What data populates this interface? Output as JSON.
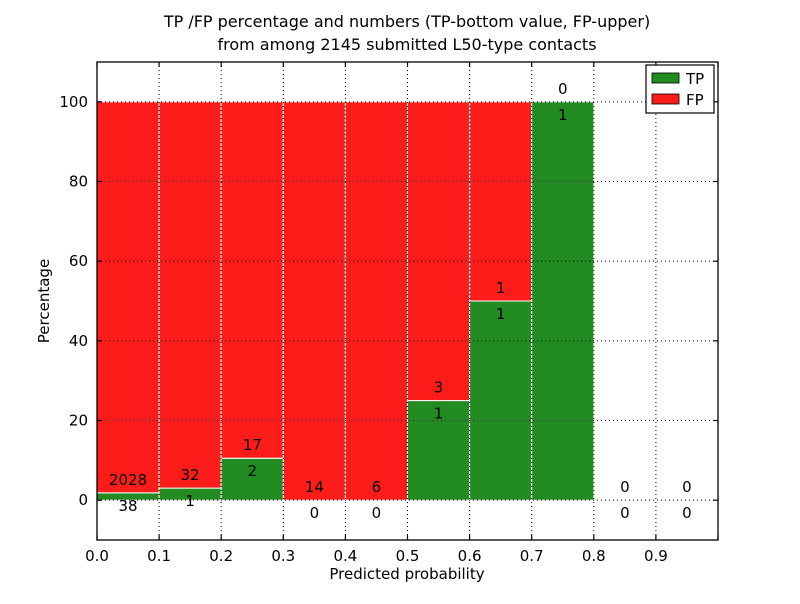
{
  "chart_data": {
    "type": "bar",
    "stacked": true,
    "title_line1": "TP /FP percentage and numbers (TP-bottom value, FP-upper)",
    "title_line2": "from among 2145 submitted L50-type contacts",
    "xlabel": "Predicted probability",
    "ylabel": "Percentage",
    "bin_edges": [
      0.0,
      0.1,
      0.2,
      0.3,
      0.4,
      0.5,
      0.6,
      0.7,
      0.8,
      0.9,
      1.0
    ],
    "series": [
      {
        "name": "TP",
        "color": "#228b22",
        "counts": [
          38,
          1,
          2,
          0,
          0,
          1,
          1,
          1,
          0,
          0
        ],
        "percentages": [
          1.84,
          3.03,
          10.53,
          0,
          0,
          25,
          50,
          100,
          0,
          0
        ]
      },
      {
        "name": "FP",
        "color": "#fc1d1a",
        "counts": [
          2028,
          32,
          17,
          14,
          6,
          3,
          1,
          0,
          0,
          0
        ],
        "percentages": [
          98.16,
          96.97,
          89.47,
          100,
          100,
          75,
          50,
          0,
          0,
          0
        ]
      }
    ],
    "xtick_labels": [
      "0.0",
      "0.1",
      "0.2",
      "0.3",
      "0.4",
      "0.5",
      "0.6",
      "0.7",
      "0.8",
      "0.9"
    ],
    "ytick_values": [
      0,
      20,
      40,
      60,
      80,
      100
    ],
    "xlim": [
      0.0,
      1.0
    ],
    "ylim": [
      -10,
      110
    ],
    "grid": "dotted",
    "bar_edge_color": "#ffffff",
    "legend": {
      "position": "upper right",
      "entries": [
        {
          "label": "TP",
          "color": "#228b22"
        },
        {
          "label": "FP",
          "color": "#fc1d1a"
        }
      ]
    }
  }
}
